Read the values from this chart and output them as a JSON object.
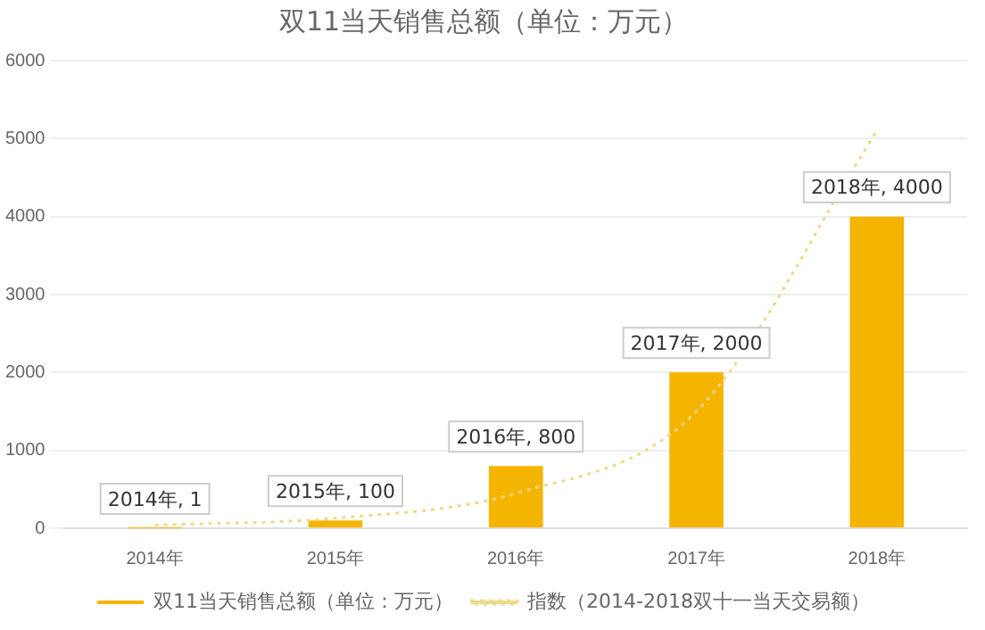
{
  "chart_data": {
    "type": "bar",
    "title": "双11当天销售总额（单位：万元）",
    "categories": [
      "2014年",
      "2015年",
      "2016年",
      "2017年",
      "2018年"
    ],
    "series": [
      {
        "name": "双11当天销售总额（单位：万元）",
        "color": "#f5b400",
        "values": [
          1,
          100,
          800,
          2000,
          4000
        ],
        "value_labels": [
          "2014年, 1",
          "2015年, 100",
          "2016年, 800",
          "2017年, 2000",
          "2018年, 4000"
        ]
      },
      {
        "name": "指数（2014-2018双十一当天交易额）",
        "type": "line",
        "color": "#efd98a",
        "line_style": "dotted",
        "marker": "none",
        "values": [
          40,
          130,
          450,
          1500,
          5100
        ]
      }
    ],
    "ylim": [
      0,
      6000
    ],
    "yticks": [
      0,
      1000,
      2000,
      3000,
      4000,
      5000,
      6000
    ],
    "grid": "y",
    "legend": "bottom"
  }
}
